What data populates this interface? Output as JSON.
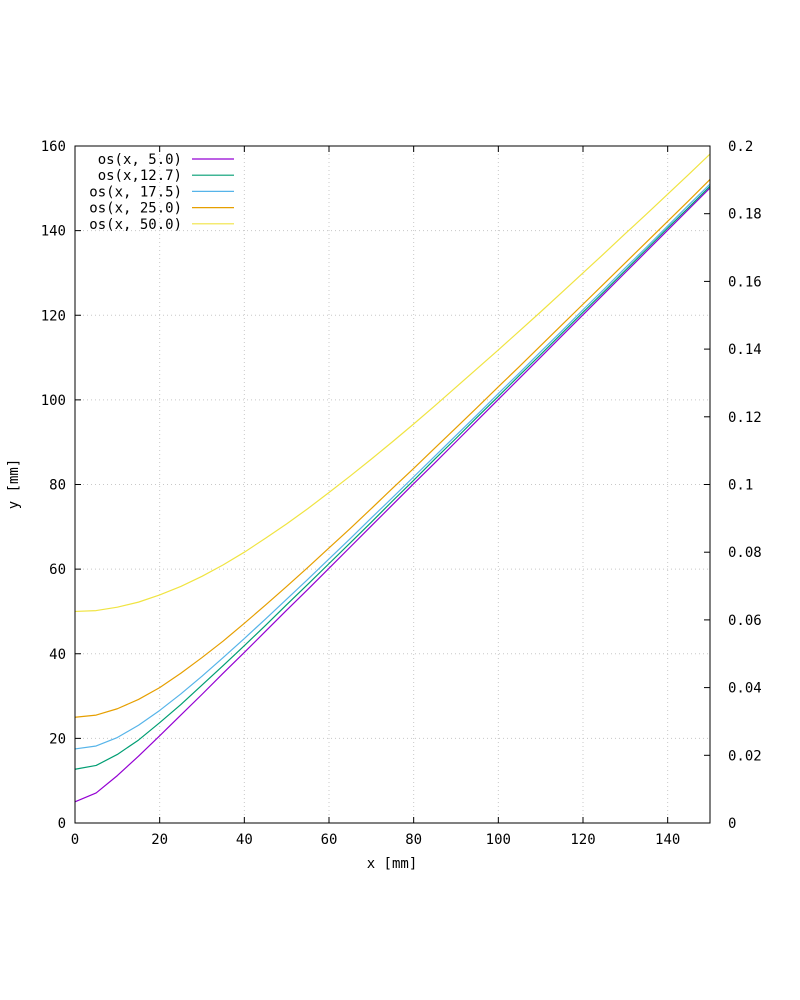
{
  "chart_data": {
    "type": "line",
    "title": "",
    "xlabel": "x [mm]",
    "ylabel": "y [mm]",
    "xlim": [
      0,
      150
    ],
    "ylim": [
      0,
      160
    ],
    "y2lim": [
      0,
      0.2
    ],
    "grid": true,
    "legend_position": "top-left",
    "x_ticks": [
      "0",
      "20",
      "40",
      "60",
      "80",
      "100",
      "120",
      "140"
    ],
    "y_ticks": [
      "0",
      "20",
      "40",
      "60",
      "80",
      "100",
      "120",
      "140",
      "160"
    ],
    "y2_ticks": [
      "0",
      "0.02",
      "0.04",
      "0.06",
      "0.08",
      "0.1",
      "0.12",
      "0.14",
      "0.16",
      "0.18",
      "0.2"
    ],
    "x": [
      0,
      5,
      10,
      15,
      20,
      25,
      30,
      35,
      40,
      45,
      50,
      55,
      60,
      65,
      70,
      75,
      80,
      85,
      90,
      95,
      100,
      105,
      110,
      115,
      120,
      125,
      130,
      135,
      140,
      145,
      150
    ],
    "series": [
      {
        "name": "os(x, 5.0)",
        "color": "#9400d3",
        "values": [
          5.0,
          7.1,
          11.2,
          15.8,
          20.6,
          25.5,
          30.4,
          35.4,
          40.3,
          45.3,
          50.3,
          55.2,
          60.2,
          65.2,
          70.2,
          75.2,
          80.2,
          85.1,
          90.1,
          95.1,
          100.1,
          105.1,
          110.1,
          115.1,
          120.1,
          125.1,
          130.1,
          135.1,
          140.1,
          145.1,
          150.1
        ]
      },
      {
        "name": "os(x,12.7)",
        "color": "#009e73",
        "values": [
          12.7,
          13.6,
          16.2,
          19.6,
          23.7,
          28.0,
          32.6,
          37.2,
          41.9,
          46.7,
          51.6,
          56.4,
          61.3,
          66.2,
          71.1,
          76.1,
          81.0,
          86.0,
          90.9,
          95.9,
          100.8,
          105.8,
          110.7,
          115.7,
          120.7,
          125.6,
          130.6,
          135.6,
          140.6,
          145.5,
          150.5
        ]
      },
      {
        "name": "os(x, 17.5)",
        "color": "#56b4e9",
        "values": [
          17.5,
          18.2,
          20.2,
          23.1,
          26.6,
          30.5,
          34.7,
          39.1,
          43.6,
          48.2,
          52.9,
          57.6,
          62.4,
          67.2,
          72.1,
          76.9,
          81.8,
          86.7,
          91.6,
          96.5,
          101.5,
          106.4,
          111.4,
          116.3,
          121.3,
          126.2,
          131.2,
          136.1,
          141.1,
          146.1,
          151.0
        ]
      },
      {
        "name": "os(x, 25.0)",
        "color": "#e69f00",
        "values": [
          25.0,
          25.5,
          27.0,
          29.2,
          32.0,
          35.4,
          39.1,
          43.0,
          47.2,
          51.5,
          55.9,
          60.4,
          65.0,
          69.6,
          74.3,
          79.1,
          83.8,
          88.6,
          93.4,
          98.2,
          103.1,
          107.9,
          112.8,
          117.7,
          122.6,
          127.5,
          132.4,
          137.3,
          142.2,
          147.1,
          152.1
        ]
      },
      {
        "name": "os(x, 50.0)",
        "color": "#f0e442",
        "values": [
          50.0,
          50.2,
          51.0,
          52.2,
          53.9,
          55.9,
          58.3,
          61.0,
          64.0,
          67.3,
          70.7,
          74.3,
          78.1,
          82.0,
          86.0,
          90.1,
          94.3,
          98.6,
          103.0,
          107.4,
          111.8,
          116.3,
          120.8,
          125.4,
          130.0,
          134.6,
          139.3,
          143.9,
          148.6,
          153.3,
          158.1
        ]
      }
    ]
  }
}
